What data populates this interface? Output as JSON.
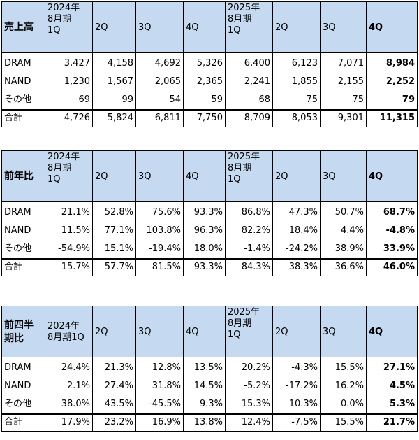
{
  "tables": [
    {
      "title": "売上高",
      "headers": {
        "first": [
          "2024年",
          "8月期",
          "1Q"
        ],
        "q2": "2Q",
        "q3": "3Q",
        "q4": "4Q",
        "fifth": [
          "2025年",
          "8月期",
          "1Q"
        ],
        "q6": "2Q",
        "q7": "3Q",
        "q8": "4Q"
      },
      "rows": [
        {
          "label": "DRAM",
          "values": [
            "3,427",
            "4,158",
            "4,692",
            "5,326",
            "6,400",
            "6,123",
            "7,071",
            "8,984"
          ]
        },
        {
          "label": "NAND",
          "values": [
            "1,230",
            "1,567",
            "2,065",
            "2,365",
            "2,241",
            "1,855",
            "2,155",
            "2,252"
          ]
        },
        {
          "label": "その他",
          "values": [
            "69",
            "99",
            "54",
            "59",
            "68",
            "75",
            "75",
            "79"
          ]
        },
        {
          "label": "合計",
          "values": [
            "4,726",
            "5,824",
            "6,811",
            "7,750",
            "8,709",
            "8,053",
            "9,301",
            "11,315"
          ]
        }
      ]
    },
    {
      "title": "前年比",
      "headers": {
        "first": [
          "2024年",
          "8月期",
          "1Q"
        ],
        "q2": "2Q",
        "q3": "3Q",
        "q4": "4Q",
        "fifth": [
          "2025年",
          "8月期",
          "1Q"
        ],
        "q6": "2Q",
        "q7": "3Q",
        "q8": "4Q"
      },
      "rows": [
        {
          "label": "DRAM",
          "values": [
            "21.1%",
            "52.8%",
            "75.6%",
            "93.3%",
            "86.8%",
            "47.3%",
            "50.7%",
            "68.7%"
          ]
        },
        {
          "label": "NAND",
          "values": [
            "11.5%",
            "77.1%",
            "103.8%",
            "96.3%",
            "82.2%",
            "18.4%",
            "4.4%",
            "-4.8%"
          ]
        },
        {
          "label": "その他",
          "values": [
            "-54.9%",
            "15.1%",
            "-19.4%",
            "18.0%",
            "-1.4%",
            "-24.2%",
            "38.9%",
            "33.9%"
          ]
        },
        {
          "label": "合計",
          "values": [
            "15.7%",
            "57.7%",
            "81.5%",
            "93.3%",
            "84.3%",
            "38.3%",
            "36.6%",
            "46.0%"
          ]
        }
      ]
    },
    {
      "title_lines": [
        "前四半",
        "期比"
      ],
      "headers": {
        "first": [
          "2024年",
          "8月期1Q"
        ],
        "q2": "2Q",
        "q3": "3Q",
        "q4": "4Q",
        "fifth": [
          "2025年",
          "8月期",
          "1Q"
        ],
        "q6": "2Q",
        "q7": "3Q",
        "q8": "4Q"
      },
      "rows": [
        {
          "label": "DRAM",
          "values": [
            "24.4%",
            "21.3%",
            "12.8%",
            "13.5%",
            "20.2%",
            "-4.3%",
            "15.5%",
            "27.1%"
          ]
        },
        {
          "label": "NAND",
          "values": [
            "2.1%",
            "27.4%",
            "31.8%",
            "14.5%",
            "-5.2%",
            "-17.2%",
            "16.2%",
            "4.5%"
          ]
        },
        {
          "label": "その他",
          "values": [
            "38.0%",
            "43.5%",
            "-45.5%",
            "9.3%",
            "15.3%",
            "10.3%",
            "0.0%",
            "5.3%"
          ]
        },
        {
          "label": "合計",
          "values": [
            "17.9%",
            "23.2%",
            "16.9%",
            "13.8%",
            "12.4%",
            "-7.5%",
            "15.5%",
            "21.7%"
          ]
        }
      ]
    }
  ],
  "colors": {
    "header_fill": "#c5d9f1",
    "border": "#000000"
  }
}
